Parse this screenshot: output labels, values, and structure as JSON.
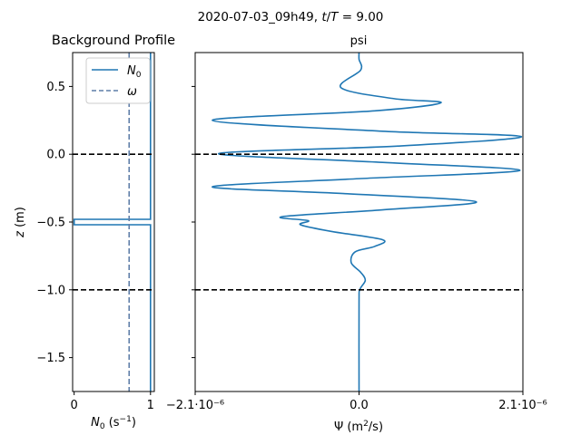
{
  "suptitle": "2020-07-03_09h49, t/T = 9.00",
  "chart_data": [
    {
      "type": "line",
      "title": "Background Profile",
      "xlabel": "N0 (s^-1)",
      "ylabel": "z (m)",
      "xlim": [
        -0.02,
        1.05
      ],
      "ylim": [
        -1.75,
        0.75
      ],
      "xticks": [
        "0",
        "1"
      ],
      "yticks": [
        "0.5",
        "0.0",
        "−0.5",
        "−1.0",
        "−1.5"
      ],
      "legend": {
        "position": "upper-center",
        "entries": [
          "N0",
          "ω"
        ]
      },
      "series": [
        {
          "name": "N0",
          "color": "#1f77b4",
          "style": "solid",
          "points": [
            [
              1.0,
              0.75
            ],
            [
              1.0,
              -0.48
            ],
            [
              0.0,
              -0.48
            ],
            [
              0.0,
              -0.52
            ],
            [
              1.0,
              -0.52
            ],
            [
              1.0,
              -1.75
            ]
          ]
        },
        {
          "name": "ω",
          "color": "#5f7ea8",
          "style": "dashed",
          "points": [
            [
              0.72,
              0.75
            ],
            [
              0.72,
              -1.75
            ]
          ]
        }
      ],
      "hlines": [
        {
          "y": 0.0,
          "color": "#000000",
          "style": "dashed"
        },
        {
          "y": -1.0,
          "color": "#000000",
          "style": "dashed"
        }
      ]
    },
    {
      "type": "line",
      "title": "psi",
      "xlabel": "Ψ (m^2/s)",
      "xlim": [
        -2.1e-06,
        2.1e-06
      ],
      "ylim": [
        -1.75,
        0.75
      ],
      "xticks": [
        "−2.1·10⁻⁶",
        "0.0",
        "2.1·10⁻⁶"
      ],
      "series": [
        {
          "name": "psi",
          "color": "#1f77b4",
          "points": [
            [
              0.0,
              0.75
            ],
            [
              0.0,
              0.7
            ],
            [
              2e-08,
              0.62
            ],
            [
              -2.3e-07,
              0.49
            ],
            [
              4.5e-07,
              0.41
            ],
            [
              1.05e-06,
              0.38
            ],
            [
              2e-07,
              0.32
            ],
            [
              -1.88e-06,
              0.25
            ],
            [
              3e-07,
              0.17
            ],
            [
              2.08e-06,
              0.13
            ],
            [
              5e-07,
              0.06
            ],
            [
              -1.8e-06,
              0.005
            ],
            [
              3e-07,
              -0.06
            ],
            [
              2.06e-06,
              -0.12
            ],
            [
              0.0,
              -0.18
            ],
            [
              -1.88e-06,
              -0.24
            ],
            [
              -2e-07,
              -0.29
            ],
            [
              1.5e-06,
              -0.35
            ],
            [
              3e-07,
              -0.41
            ],
            [
              -9.8e-07,
              -0.46
            ],
            [
              -6.5e-07,
              -0.49
            ],
            [
              -7.5e-07,
              -0.52
            ],
            [
              -3.5e-07,
              -0.57
            ],
            [
              3e-07,
              -0.63
            ],
            [
              2e-07,
              -0.68
            ],
            [
              -5e-08,
              -0.72
            ],
            [
              -1e-07,
              -0.8
            ],
            [
              2e-08,
              -0.87
            ],
            [
              8e-08,
              -0.93
            ],
            [
              1e-08,
              -1.0
            ],
            [
              0.0,
              -1.1
            ],
            [
              0.0,
              -1.75
            ]
          ]
        }
      ],
      "hlines": [
        {
          "y": 0.0,
          "color": "#000000",
          "style": "dashed"
        },
        {
          "y": -1.0,
          "color": "#000000",
          "style": "dashed"
        }
      ]
    }
  ]
}
